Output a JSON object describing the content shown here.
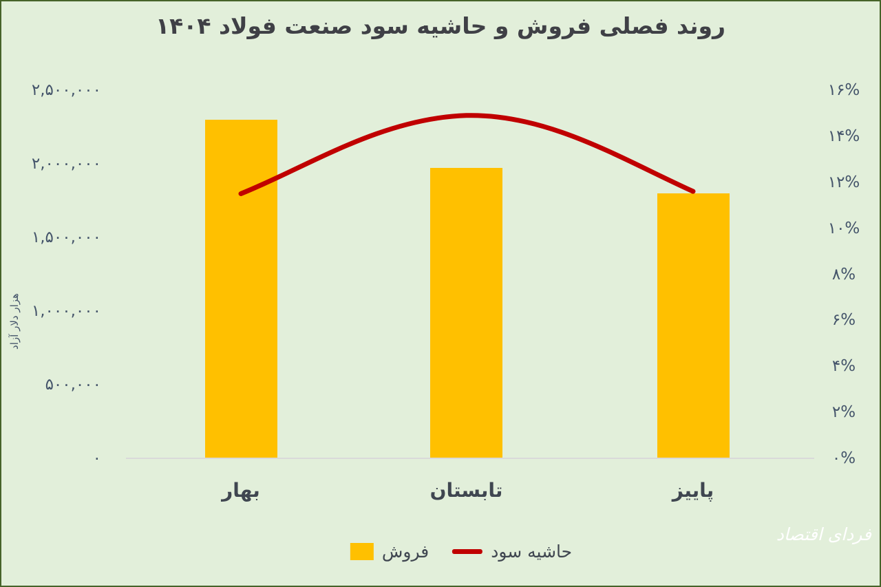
{
  "title": "روند فصلی فروش و حاشیه سود صنعت فولاد ۱۴۰۴",
  "watermark": "فردای اقتصاد",
  "colors": {
    "background": "#E2EFDA",
    "frame_border": "#466329",
    "bar": "#FFC000",
    "line": "#C00000",
    "title_text": "#3F4046",
    "axis_text": "#44546A",
    "baseline": "#D9D9D9"
  },
  "chart_data": {
    "type": "combo_bar_line",
    "title": "روند فصلی فروش و حاشیه سود صنعت فولاد ۱۴۰۴",
    "categories": [
      "بهار",
      "تابستان",
      "پاییز"
    ],
    "series": [
      {
        "name": "فروش",
        "type": "bar",
        "axis": "left",
        "color": "#FFC000",
        "values": [
          2300000,
          1970000,
          1800000
        ]
      },
      {
        "name": "حاشیه سود",
        "type": "line",
        "axis": "right",
        "color": "#C00000",
        "values_percent": [
          11.5,
          14.9,
          11.6
        ]
      }
    ],
    "left_axis": {
      "title": "هزار دلار آزاد",
      "min": 0,
      "max": 2500000,
      "step": 500000,
      "tick_labels": [
        "۰",
        "۵۰۰,۰۰۰",
        "۱,۰۰۰,۰۰۰",
        "۱,۵۰۰,۰۰۰",
        "۲,۰۰۰,۰۰۰",
        "۲,۵۰۰,۰۰۰"
      ]
    },
    "right_axis": {
      "min": 0,
      "max": 16,
      "step": 2,
      "tick_labels": [
        "۰%",
        "۲%",
        "۴%",
        "۶%",
        "۸%",
        "۱۰%",
        "۱۲%",
        "۱۴%",
        "۱۶%"
      ]
    },
    "grid": false,
    "legend_position": "bottom",
    "legend": [
      {
        "label": "فروش",
        "marker": "square",
        "color": "#FFC000"
      },
      {
        "label": "حاشیه سود",
        "marker": "line",
        "color": "#C00000"
      }
    ]
  }
}
